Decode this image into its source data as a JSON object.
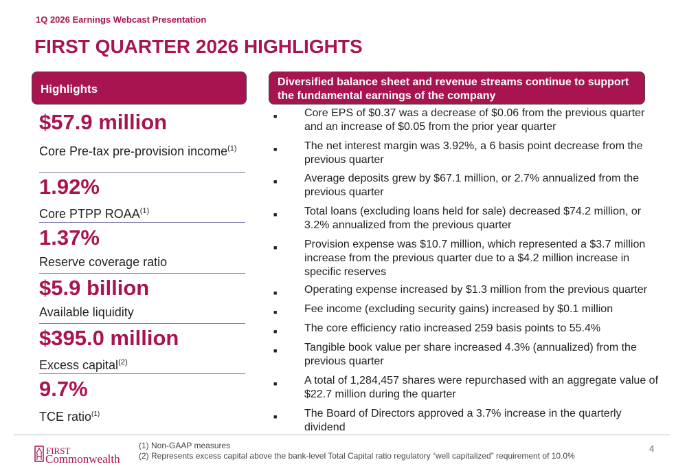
{
  "header": {
    "subtitle": "1Q 2026 Earnings Webcast Presentation",
    "title": "FIRST QUARTER 2026 HIGHLIGHTS"
  },
  "left": {
    "heading": "Highlights",
    "metrics": [
      {
        "value": "$57.9 million",
        "label": "Core Pre-tax pre-provision income",
        "note": "(1)"
      },
      {
        "value": "1.92%",
        "label": "Core PTPP ROAA",
        "note": "(1)"
      },
      {
        "value": "1.37%",
        "label": "Reserve coverage ratio",
        "note": ""
      },
      {
        "value": "$5.9 billion",
        "label": "Available liquidity",
        "note": ""
      },
      {
        "value": "$395.0 million",
        "label": "Excess capital",
        "note": "(2)"
      },
      {
        "value": "9.7%",
        "label": "TCE ratio",
        "note": "(1)"
      }
    ]
  },
  "right": {
    "heading": "Diversified balance sheet and revenue streams continue to support the fundamental earnings of the company",
    "bullets": [
      "Core EPS of $0.37 was a decrease of $0.06 from the previous quarter and an increase of $0.05 from the prior year quarter",
      "The net interest margin was 3.92%, a 6 basis point decrease from the previous quarter",
      "Average deposits grew by $67.1 million, or 2.7% annualized from the previous quarter",
      "Total loans (excluding loans held for sale) decreased $74.2 million, or 3.2% annualized from the previous quarter",
      "Provision expense was $10.7 million, which represented a $3.7 million increase from the previous quarter due to a $4.2 million increase in specific reserves",
      "Operating expense increased by $1.3 million from the previous quarter",
      "Fee income (excluding security gains) increased by $0.1 million",
      "The core efficiency ratio increased 259 basis points to 55.4%",
      "Tangible book value per share increased 4.3% (annualized) from the previous quarter",
      "A total of 1,284,457 shares were repurchased with an aggregate value of $22.7 million during the quarter",
      "The Board of Directors approved a 3.7% increase in the quarterly dividend"
    ]
  },
  "footer": {
    "notes": [
      "(1)  Non-GAAP measures",
      "(2)  Represents excess capital above the bank-level Total Capital ratio regulatory “well capitalized” requirement of 10.0%"
    ],
    "page": "4",
    "logo": "First Commonwealth"
  },
  "colors": {
    "brand": "#a81450"
  }
}
